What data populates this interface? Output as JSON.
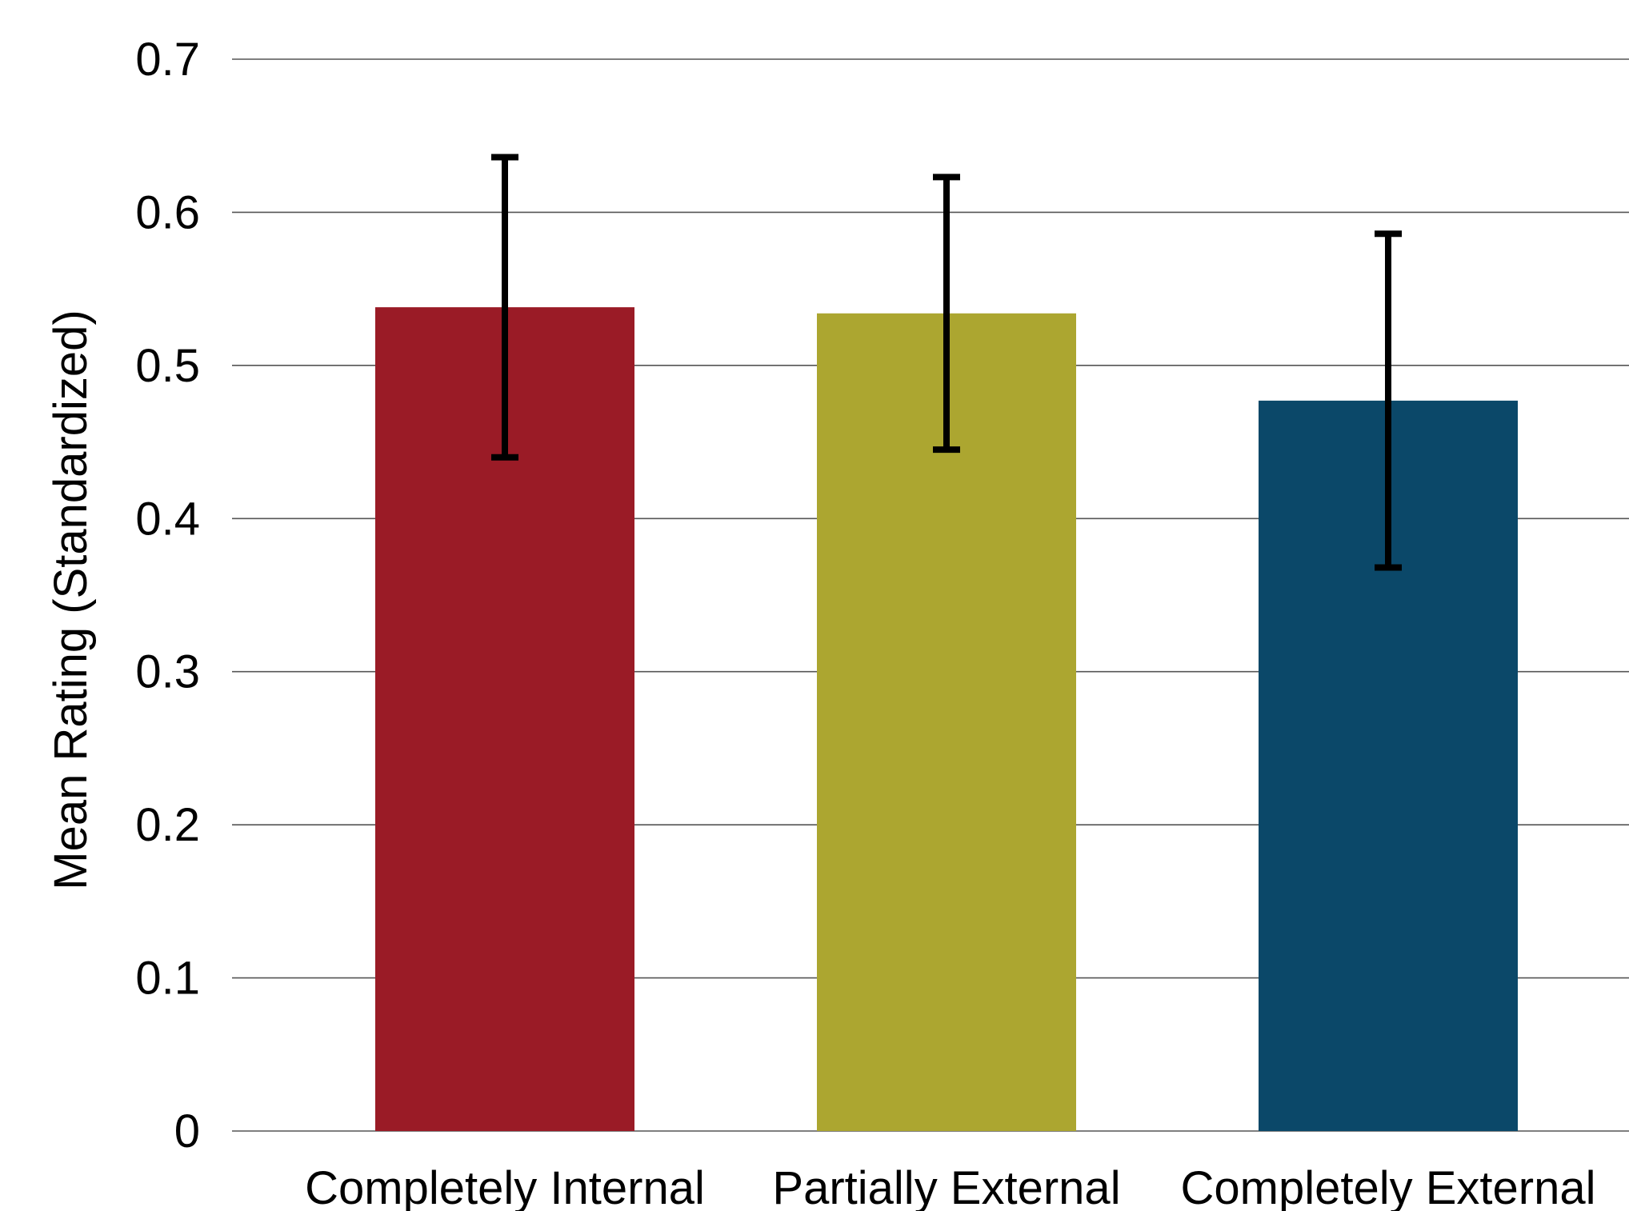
{
  "chart_data": {
    "type": "bar",
    "title": "",
    "xlabel": "",
    "ylabel": "Mean Rating (Standardized)",
    "ylim": [
      0,
      0.7
    ],
    "yticks": [
      "0",
      "0.1",
      "0.2",
      "0.3",
      "0.4",
      "0.5",
      "0.6",
      "0.7"
    ],
    "grid": true,
    "categories": [
      "Completely Internal",
      "Partially External",
      "Completely External"
    ],
    "values": [
      0.538,
      0.534,
      0.477
    ],
    "error_bars": {
      "lower": [
        0.44,
        0.445,
        0.368
      ],
      "upper": [
        0.636,
        0.623,
        0.586
      ]
    },
    "colors": [
      "#9a1b26",
      "#aca630",
      "#0b4869"
    ],
    "error_bar_color": "#000000",
    "gridline_color": "#555555"
  }
}
